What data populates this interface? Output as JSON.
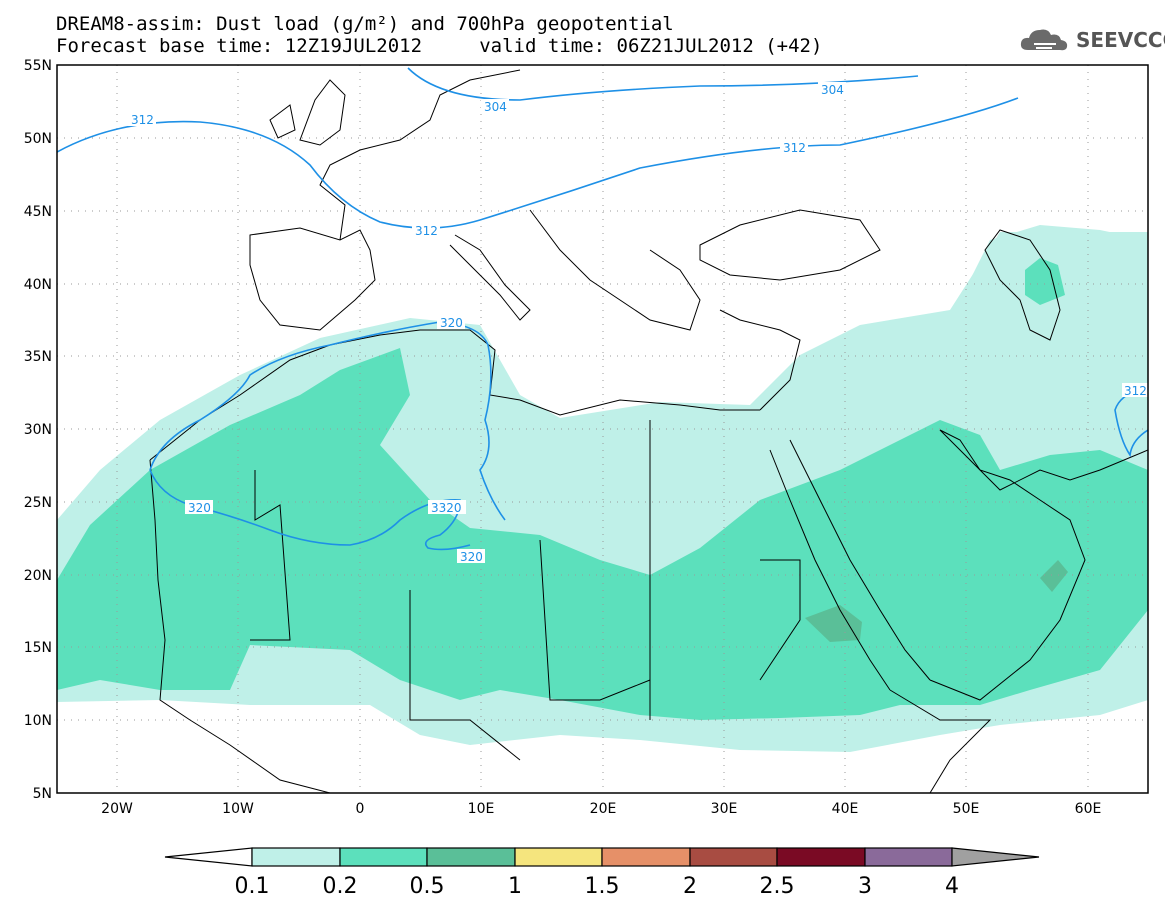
{
  "header": {
    "title_line1": "DREAM8-assim: Dust load (g/m²) and 700hPa geopotential",
    "title_line2": "Forecast base time: 12Z19JUL2012     valid time: 06Z21JUL2012 (+42)"
  },
  "logo": {
    "text": "SEEVCCC",
    "icon": "cloud-icon"
  },
  "map": {
    "lon_range": [
      -25,
      65
    ],
    "lat_range": [
      5,
      55
    ],
    "lat_labels": [
      "55N",
      "50N",
      "45N",
      "40N",
      "35N",
      "30N",
      "25N",
      "20N",
      "15N",
      "10N",
      "5N"
    ],
    "lon_labels": [
      "20W",
      "10W",
      "0",
      "10E",
      "20E",
      "30E",
      "40E",
      "50E",
      "60E"
    ],
    "contour_labels": [
      "312",
      "304",
      "304",
      "312",
      "312",
      "320",
      "312",
      "320",
      "3320",
      "320"
    ],
    "colors": {
      "contour": "#1e90e6",
      "coast": "#000000",
      "grid": "#999999"
    }
  },
  "colorbar": {
    "labels": [
      "0.1",
      "0.2",
      "0.5",
      "1",
      "1.5",
      "2",
      "2.5",
      "3",
      "4"
    ],
    "colors": [
      "#ffffff",
      "#bff0e8",
      "#5ce0bc",
      "#5abf98",
      "#f5e57e",
      "#e69068",
      "#a84c42",
      "#7a0a24",
      "#8a6a9a",
      "#a0a0a0"
    ]
  }
}
